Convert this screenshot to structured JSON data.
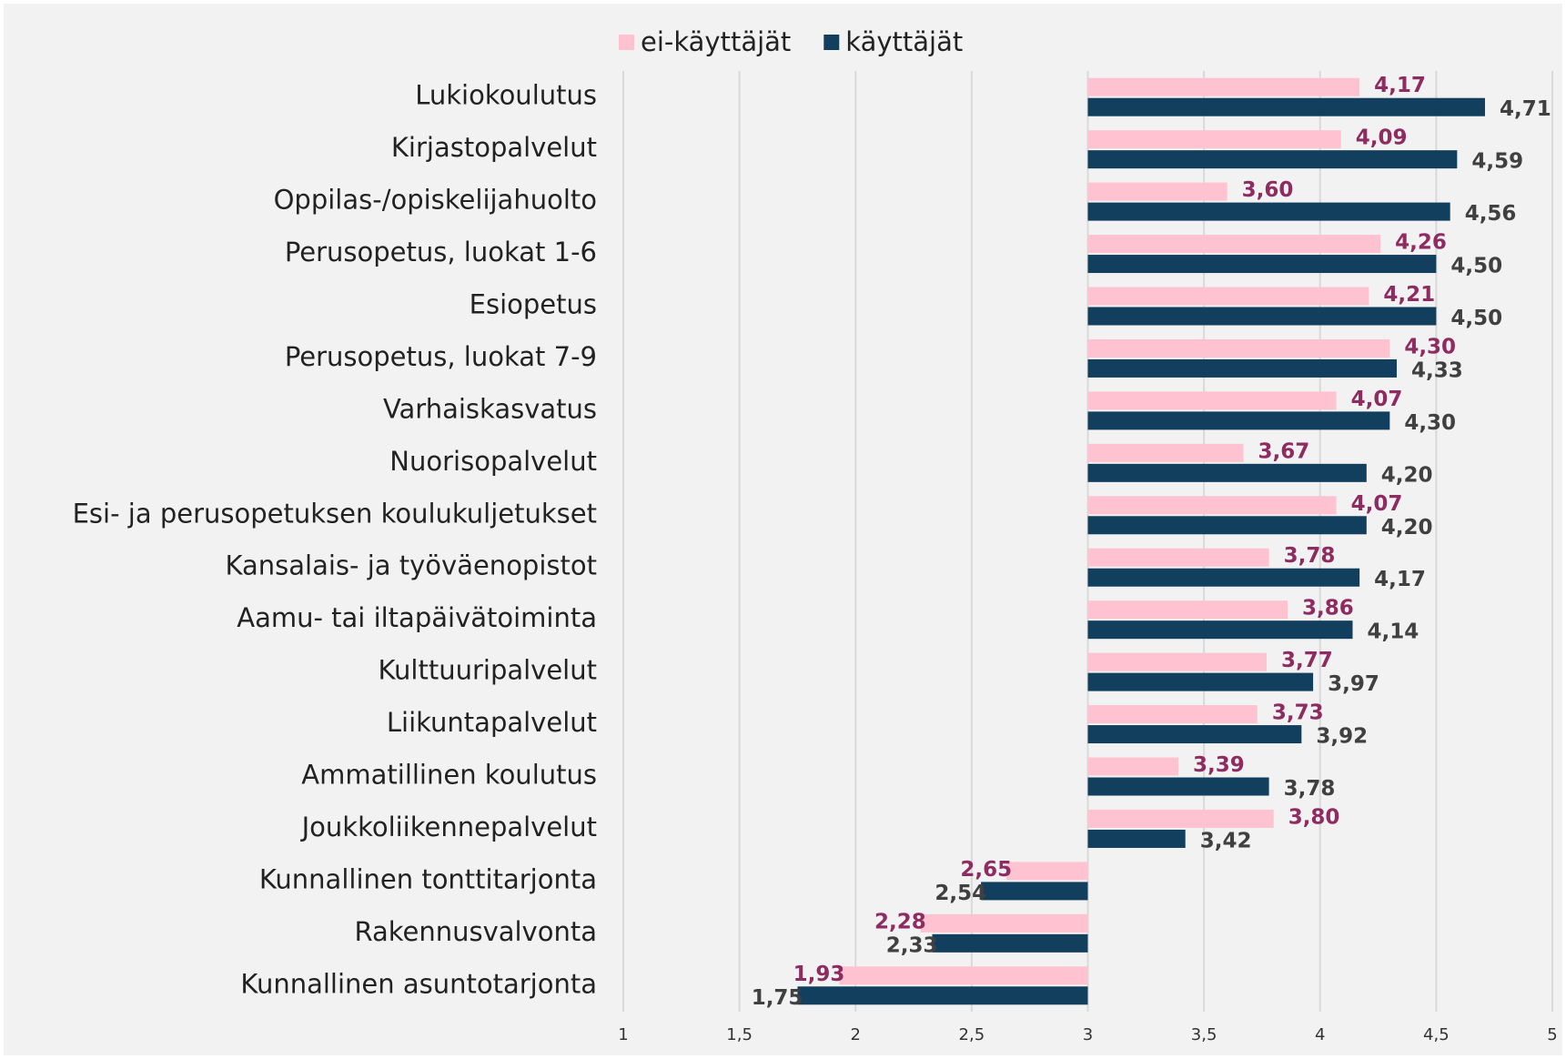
{
  "chart_data": {
    "type": "bar",
    "orientation": "horizontal",
    "base": 3,
    "categories": [
      "Lukiokoulutus",
      "Kirjastopalvelut",
      "Oppilas-/opiskelijahuolto",
      "Perusopetus, luokat 1-6",
      "Esiopetus",
      "Perusopetus, luokat 7-9",
      "Varhaiskasvatus",
      "Nuorisopalvelut",
      "Esi- ja perusopetuksen koulukuljetukset",
      "Kansalais- ja työväenopistot",
      "Aamu- tai iltapäivätoiminta",
      "Kulttuuripalvelut",
      "Liikuntapalvelut",
      "Ammatillinen koulutus",
      "Joukkoliikennepalvelut",
      "Kunnallinen tonttitarjonta",
      "Rakennusvalvonta",
      "Kunnallinen asuntotarjonta"
    ],
    "series": [
      {
        "name": "ei-käyttäjät",
        "color": "#ffc2d1",
        "label_color": "#8e2b61",
        "values": [
          4.17,
          4.09,
          3.6,
          4.26,
          4.21,
          4.3,
          4.07,
          3.67,
          4.07,
          3.78,
          3.86,
          3.77,
          3.73,
          3.39,
          3.8,
          2.65,
          2.28,
          1.93
        ],
        "value_labels": [
          "4,17",
          "4,09",
          "3,60",
          "4,26",
          "4,21",
          "4,30",
          "4,07",
          "3,67",
          "4,07",
          "3,78",
          "3,86",
          "3,77",
          "3,73",
          "3,39",
          "3,80",
          "2,65",
          "2,28",
          "1,93"
        ]
      },
      {
        "name": "käyttäjät",
        "color": "#133f5e",
        "label_color": "#404040",
        "values": [
          4.71,
          4.59,
          4.56,
          4.5,
          4.5,
          4.33,
          4.3,
          4.2,
          4.2,
          4.17,
          4.14,
          3.97,
          3.92,
          3.78,
          3.42,
          2.54,
          2.33,
          1.75
        ],
        "value_labels": [
          "4,71",
          "4,59",
          "4,56",
          "4,50",
          "4,50",
          "4,33",
          "4,30",
          "4,20",
          "4,20",
          "4,17",
          "4,14",
          "3,97",
          "3,92",
          "3,78",
          "3,42",
          "2,54",
          "2,33",
          "1,75"
        ]
      }
    ],
    "xlim": [
      1,
      5
    ],
    "xticks": [
      1,
      {
        "value": 1.5,
        "label": "1,5"
      },
      2,
      {
        "value": 2.5,
        "label": "2,5"
      },
      3,
      {
        "value": 3.5,
        "label": "3,5"
      },
      4,
      {
        "value": 4.5,
        "label": "4,5"
      },
      5
    ],
    "grid": true,
    "legend": "top"
  }
}
